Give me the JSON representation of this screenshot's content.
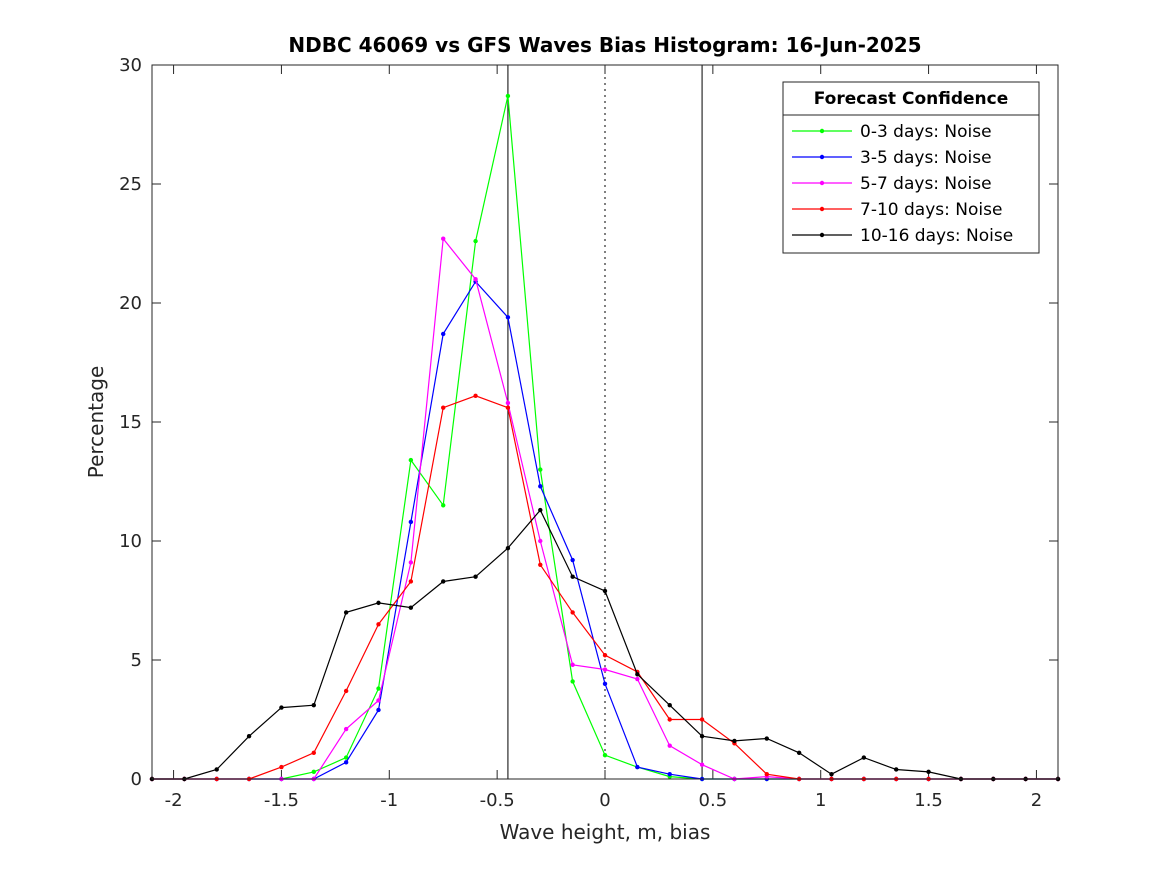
{
  "chart_data": {
    "type": "line",
    "title": "NDBC 46069 vs GFS Waves Bias Histogram: 16-Jun-2025",
    "xlabel": "Wave height, m, bias",
    "ylabel": "Percentage",
    "xlim": [
      -2.1,
      2.1
    ],
    "ylim": [
      0,
      30
    ],
    "xticks": [
      -2,
      -1.5,
      -1,
      -0.5,
      0,
      0.5,
      1,
      1.5,
      2
    ],
    "xtick_labels": [
      "-2",
      "-1.5",
      "-1",
      "-0.5",
      "0",
      "0.5",
      "1",
      "1.5",
      "2"
    ],
    "yticks": [
      0,
      5,
      10,
      15,
      20,
      25,
      30
    ],
    "ytick_labels": [
      "0",
      "5",
      "10",
      "15",
      "20",
      "25",
      "30"
    ],
    "vertical_lines": [
      {
        "x": -0.45,
        "style": "solid"
      },
      {
        "x": 0,
        "style": "dotted"
      },
      {
        "x": 0.45,
        "style": "solid"
      }
    ],
    "legend": {
      "title": "Forecast Confidence",
      "placement": "top-right"
    },
    "x": [
      -2.1,
      -1.95,
      -1.8,
      -1.65,
      -1.5,
      -1.35,
      -1.2,
      -1.05,
      -0.9,
      -0.75,
      -0.6,
      -0.45,
      -0.3,
      -0.15,
      0,
      0.15,
      0.3,
      0.45,
      0.6,
      0.75,
      0.9,
      1.05,
      1.2,
      1.35,
      1.5,
      1.65,
      1.8,
      1.95,
      2.1
    ],
    "series": [
      {
        "name": "0-3 days: Noise",
        "color": "#00ff00",
        "values": [
          0,
          0,
          0,
          0,
          0,
          0.3,
          0.9,
          3.8,
          13.4,
          11.5,
          22.6,
          28.7,
          13.0,
          4.1,
          1.0,
          0.5,
          0.1,
          0,
          0,
          0,
          0,
          0,
          0,
          0,
          0,
          0,
          0,
          0,
          0
        ]
      },
      {
        "name": "3-5 days: Noise",
        "color": "#0000ff",
        "values": [
          0,
          0,
          0,
          0,
          0,
          0,
          0.7,
          2.9,
          10.8,
          18.7,
          20.9,
          19.4,
          12.3,
          9.2,
          4.0,
          0.5,
          0.2,
          0,
          0,
          0,
          0,
          0,
          0,
          0,
          0,
          0,
          0,
          0,
          0
        ]
      },
      {
        "name": "5-7 days: Noise",
        "color": "#ff00ff",
        "values": [
          0,
          0,
          0,
          0,
          0,
          0,
          2.1,
          3.3,
          9.1,
          22.7,
          21.0,
          15.8,
          10.0,
          4.8,
          4.6,
          4.2,
          1.4,
          0.6,
          0,
          0.1,
          0,
          0,
          0,
          0,
          0,
          0,
          0,
          0,
          0
        ]
      },
      {
        "name": "7-10 days: Noise",
        "color": "#ff0000",
        "values": [
          0,
          0,
          0,
          0,
          0.5,
          1.1,
          3.7,
          6.5,
          8.3,
          15.6,
          16.1,
          15.6,
          9.0,
          7.0,
          5.2,
          4.5,
          2.5,
          2.5,
          1.5,
          0.2,
          0,
          0,
          0,
          0,
          0,
          0,
          0,
          0,
          0
        ]
      },
      {
        "name": "10-16 days: Noise",
        "color": "#000000",
        "values": [
          0,
          0,
          0.4,
          1.8,
          3.0,
          3.1,
          7.0,
          7.4,
          7.2,
          8.3,
          8.5,
          9.7,
          11.3,
          8.5,
          7.9,
          4.4,
          3.1,
          1.8,
          1.6,
          1.7,
          1.1,
          0.2,
          0.9,
          0.4,
          0.3,
          0,
          0,
          0,
          0
        ]
      }
    ]
  }
}
